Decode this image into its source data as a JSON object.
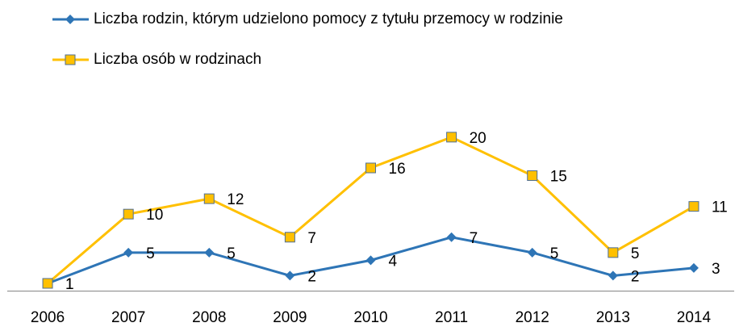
{
  "chart_data": {
    "type": "line",
    "categories": [
      "2006",
      "2007",
      "2008",
      "2009",
      "2010",
      "2011",
      "2012",
      "2013",
      "2014"
    ],
    "series": [
      {
        "name": "Liczba rodzin, którym udzielono pomocy z tytułu przemocy w rodzinie",
        "color": "#2e75b6",
        "marker": "diamond",
        "values": [
          1,
          5,
          5,
          2,
          4,
          7,
          5,
          2,
          3
        ]
      },
      {
        "name": "Liczba osób w rodzinach",
        "color": "#ffc000",
        "marker": "square",
        "values": [
          1,
          10,
          12,
          7,
          16,
          20,
          15,
          5,
          11
        ]
      }
    ],
    "ylim": [
      0,
      22
    ],
    "legend": "top-left"
  }
}
